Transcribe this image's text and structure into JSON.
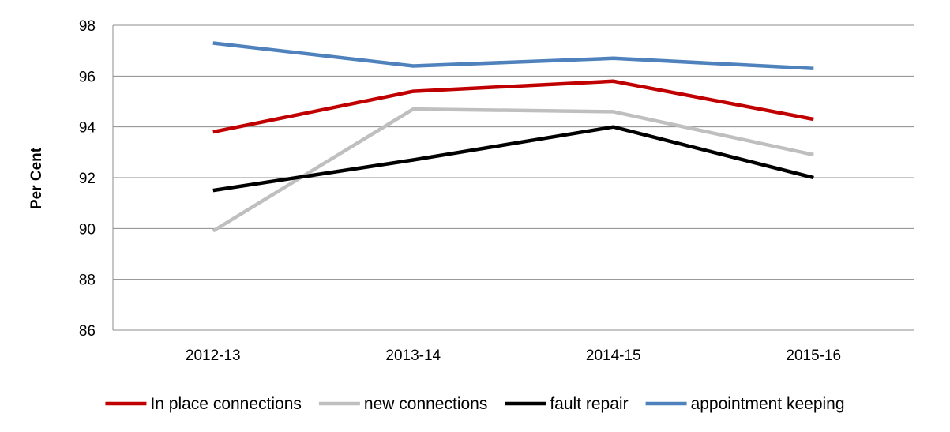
{
  "chart_data": {
    "type": "line",
    "title": "",
    "xlabel": "",
    "ylabel": "Per Cent",
    "categories": [
      "2012-13",
      "2013-14",
      "2014-15",
      "2015-16"
    ],
    "ylim": [
      86,
      98
    ],
    "yticks": [
      86,
      88,
      90,
      92,
      94,
      96,
      98
    ],
    "grid": "horizontal",
    "legend_position": "bottom",
    "series": [
      {
        "name": "In place connections",
        "color": "#C00000",
        "values": [
          93.8,
          95.4,
          95.8,
          94.3
        ]
      },
      {
        "name": "new connections",
        "color": "#BFBFBF",
        "values": [
          89.9,
          94.7,
          94.6,
          92.9
        ]
      },
      {
        "name": "fault repair",
        "color": "#000000",
        "values": [
          91.5,
          92.7,
          94.0,
          92.0
        ]
      },
      {
        "name": "appointment keeping",
        "color": "#4F81BD",
        "values": [
          97.3,
          96.4,
          96.7,
          96.3
        ]
      }
    ]
  }
}
